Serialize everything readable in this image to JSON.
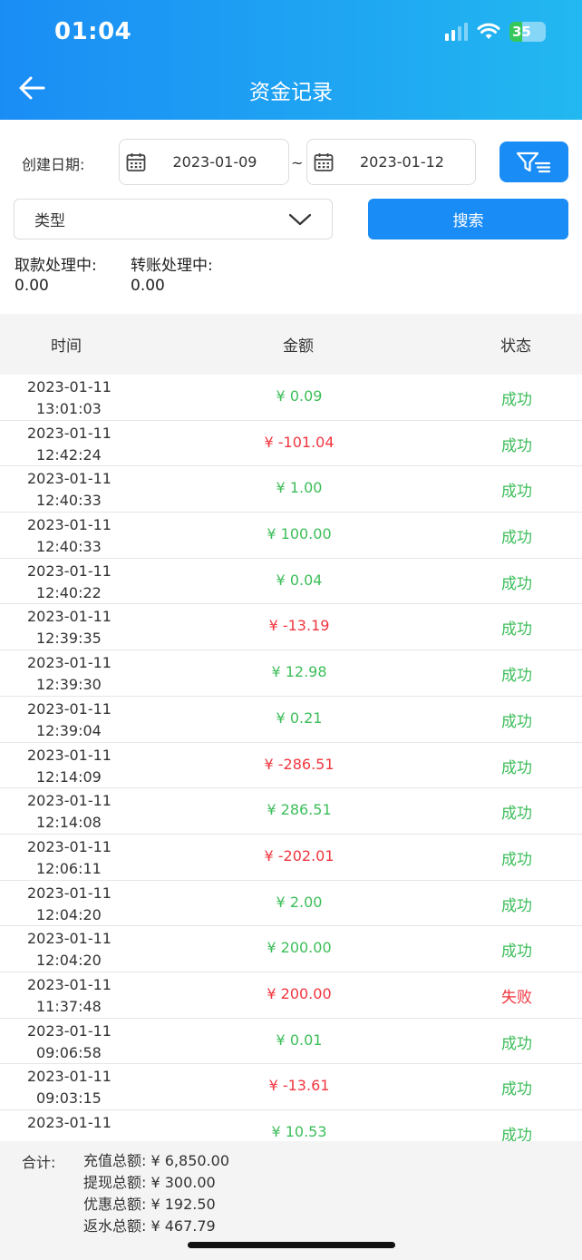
{
  "status_bar": {
    "time": "01:04",
    "battery": "35"
  },
  "header": {
    "title": "资金记录"
  },
  "filters": {
    "date_label": "创建日期:",
    "start_date": "2023-01-09",
    "separator": "~",
    "end_date": "2023-01-12",
    "type_label": "类型",
    "search_label": "搜索"
  },
  "pending": {
    "withdraw_label": "取款处理中:",
    "withdraw_value": "0.00",
    "transfer_label": "转账处理中:",
    "transfer_value": "0.00"
  },
  "table": {
    "headers": [
      "时间",
      "金额",
      "状态"
    ],
    "rows": [
      {
        "date": "2023-01-11",
        "time": "13:01:03",
        "amount": "¥ 0.09",
        "tone": "green",
        "status": "成功"
      },
      {
        "date": "2023-01-11",
        "time": "12:42:24",
        "amount": "¥ -101.04",
        "tone": "red",
        "status": "成功"
      },
      {
        "date": "2023-01-11",
        "time": "12:40:33",
        "amount": "¥ 1.00",
        "tone": "green",
        "status": "成功"
      },
      {
        "date": "2023-01-11",
        "time": "12:40:33",
        "amount": "¥ 100.00",
        "tone": "green",
        "status": "成功"
      },
      {
        "date": "2023-01-11",
        "time": "12:40:22",
        "amount": "¥ 0.04",
        "tone": "green",
        "status": "成功"
      },
      {
        "date": "2023-01-11",
        "time": "12:39:35",
        "amount": "¥ -13.19",
        "tone": "red",
        "status": "成功"
      },
      {
        "date": "2023-01-11",
        "time": "12:39:30",
        "amount": "¥ 12.98",
        "tone": "green",
        "status": "成功"
      },
      {
        "date": "2023-01-11",
        "time": "12:39:04",
        "amount": "¥ 0.21",
        "tone": "green",
        "status": "成功"
      },
      {
        "date": "2023-01-11",
        "time": "12:14:09",
        "amount": "¥ -286.51",
        "tone": "red",
        "status": "成功"
      },
      {
        "date": "2023-01-11",
        "time": "12:14:08",
        "amount": "¥ 286.51",
        "tone": "green",
        "status": "成功"
      },
      {
        "date": "2023-01-11",
        "time": "12:06:11",
        "amount": "¥ -202.01",
        "tone": "red",
        "status": "成功"
      },
      {
        "date": "2023-01-11",
        "time": "12:04:20",
        "amount": "¥ 2.00",
        "tone": "green",
        "status": "成功"
      },
      {
        "date": "2023-01-11",
        "time": "12:04:20",
        "amount": "¥ 200.00",
        "tone": "green",
        "status": "成功"
      },
      {
        "date": "2023-01-11",
        "time": "11:37:48",
        "amount": "¥ 200.00",
        "tone": "red",
        "status": "失败"
      },
      {
        "date": "2023-01-11",
        "time": "09:06:58",
        "amount": "¥ 0.01",
        "tone": "green",
        "status": "成功"
      },
      {
        "date": "2023-01-11",
        "time": "09:03:15",
        "amount": "¥ -13.61",
        "tone": "red",
        "status": "成功"
      },
      {
        "date": "2023-01-11",
        "time": "",
        "amount": "¥ 10.53",
        "tone": "green",
        "status": "成功"
      }
    ]
  },
  "summary": {
    "label": "合计:",
    "lines": [
      "充值总额: ¥ 6,850.00",
      "提现总额: ¥ 300.00",
      "优惠总额: ¥ 192.50",
      "返水总额: ¥ 467.79"
    ]
  },
  "colors": {
    "accent": "#1a8cf5",
    "success": "#3dbe5a",
    "negative": "#f0363f"
  }
}
